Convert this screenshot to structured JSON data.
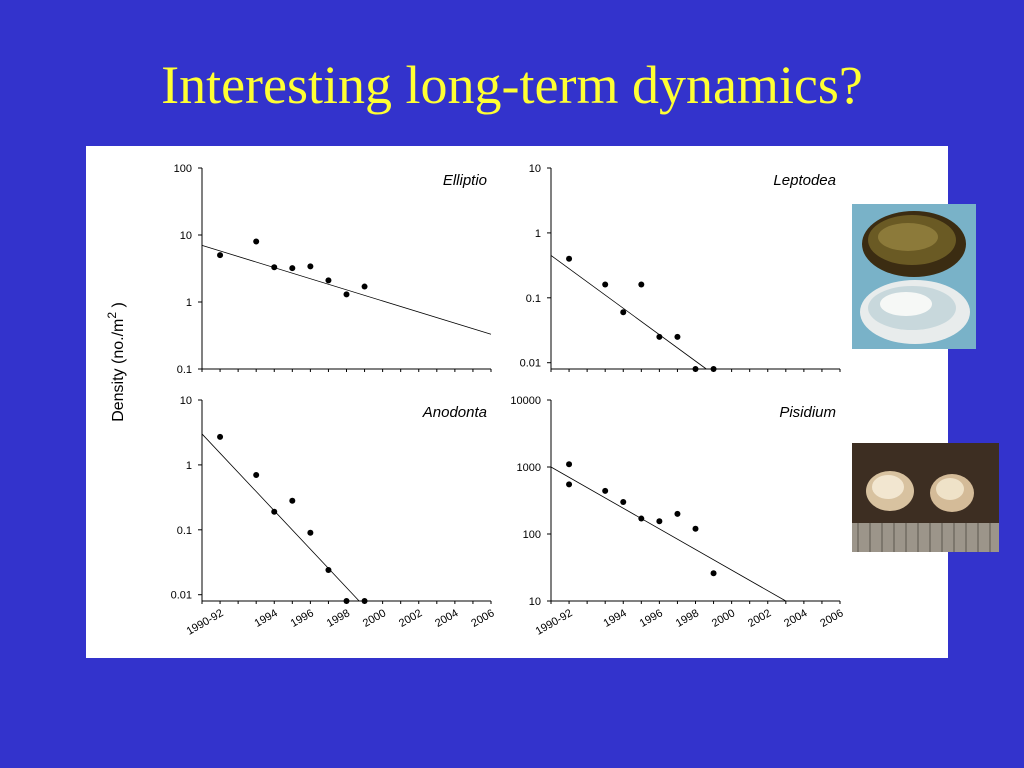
{
  "slide": {
    "title": "Interesting long-term dynamics?"
  },
  "ylabel_main": "Density (no./m",
  "ylabel_sup": "2",
  "ylabel_close": " )",
  "chart_data": [
    {
      "type": "scatter",
      "panel": "Elliptio",
      "title": "Elliptio",
      "yscale": "log",
      "ylim": [
        0.1,
        100
      ],
      "yticks": [
        0.1,
        1,
        10,
        100
      ],
      "yticklabels": [
        "0.1",
        "1",
        "10",
        "100"
      ],
      "x": [
        1991,
        1993,
        1994,
        1995,
        1996,
        1997,
        1998,
        1999
      ],
      "y": [
        5,
        8,
        3.3,
        3.2,
        3.4,
        2.1,
        1.3,
        1.7
      ],
      "trend": [
        [
          1990,
          7.0
        ],
        [
          2006,
          0.33
        ]
      ]
    },
    {
      "type": "scatter",
      "panel": "Leptodea",
      "title": "Leptodea",
      "yscale": "log",
      "ylim": [
        0.008,
        10
      ],
      "yticks": [
        0.01,
        0.1,
        1,
        10
      ],
      "yticklabels": [
        "0.01",
        "0.1",
        "1",
        "10"
      ],
      "x": [
        1991,
        1993,
        1994,
        1995,
        1996,
        1997,
        1998,
        1999
      ],
      "y": [
        0.4,
        0.16,
        0.06,
        0.16,
        0.025,
        0.025,
        0.008,
        0.008
      ],
      "trend": [
        [
          1990,
          0.45
        ],
        [
          1998.6,
          0.008
        ]
      ]
    },
    {
      "type": "scatter",
      "panel": "Anodonta",
      "title": "Anodonta",
      "yscale": "log",
      "ylim": [
        0.008,
        10
      ],
      "yticks": [
        0.01,
        0.1,
        1,
        10
      ],
      "yticklabels": [
        "0.01",
        "0.1",
        "1",
        "10"
      ],
      "x": [
        1991,
        1993,
        1994,
        1995,
        1996,
        1997,
        1998,
        1999
      ],
      "y": [
        2.7,
        0.7,
        0.19,
        0.28,
        0.09,
        0.024,
        0.008,
        0.008
      ],
      "trend": [
        [
          1990,
          3.0
        ],
        [
          1998.7,
          0.008
        ]
      ]
    },
    {
      "type": "scatter",
      "panel": "Pisidium",
      "title": "Pisidium",
      "yscale": "log",
      "ylim": [
        10,
        10000
      ],
      "yticks": [
        10,
        100,
        1000,
        10000
      ],
      "yticklabels": [
        "10",
        "100",
        "1000",
        "10000"
      ],
      "x": [
        1991,
        1991,
        1993,
        1994,
        1995,
        1996,
        1997,
        1998,
        1999
      ],
      "y": [
        1100,
        550,
        440,
        300,
        170,
        155,
        200,
        120,
        26
      ],
      "trend": [
        [
          1990,
          1000
        ],
        [
          2003.0,
          10
        ]
      ]
    }
  ],
  "xaxis": {
    "xlim": [
      1990,
      2006
    ],
    "ticks": [
      1991,
      1994,
      1996,
      1998,
      2000,
      2002,
      2004,
      2006
    ],
    "ticklabels": [
      "1990-92",
      "1994",
      "1996",
      "1998",
      "2000",
      "2002",
      "2004",
      "2006"
    ]
  },
  "photos": {
    "top": "mussel-shell-photo",
    "bottom": "pea-clam-photo"
  }
}
